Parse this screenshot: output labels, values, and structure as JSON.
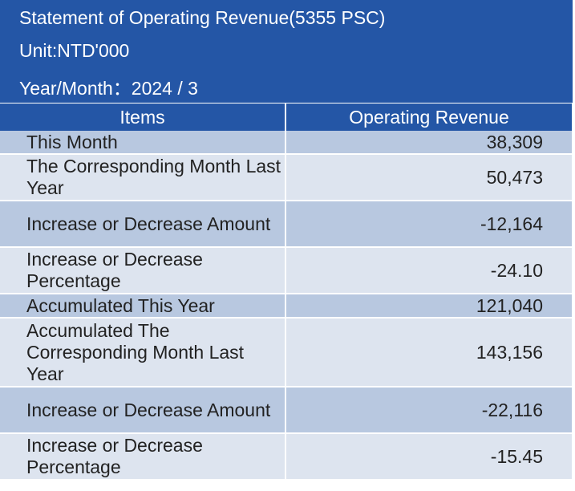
{
  "header": {
    "title": "Statement of Operating Revenue(5355 PSC)",
    "unit": "Unit:NTD'000",
    "period": "Year/Month：2024 / 3"
  },
  "table": {
    "columns": [
      "Items",
      "Operating Revenue"
    ],
    "rows": [
      {
        "item": "This Month",
        "value": "38,309"
      },
      {
        "item": "The Corresponding Month Last Year",
        "value": "50,473"
      },
      {
        "item": "Increase or Decrease Amount",
        "value": "-12,164"
      },
      {
        "item": "Increase or Decrease Percentage",
        "value": "-24.10"
      },
      {
        "item": "Accumulated This Year",
        "value": "121,040"
      },
      {
        "item": "Accumulated The Corresponding Month Last Year",
        "value": "143,156"
      },
      {
        "item": "Increase or Decrease Amount",
        "value": "-22,116"
      },
      {
        "item": "Increase or Decrease Percentage",
        "value": "-15.45"
      }
    ]
  },
  "colors": {
    "header_blue": "#2456a6",
    "row_dark": "#b8c8e0",
    "row_light": "#dde4ef",
    "text": "#222222"
  }
}
